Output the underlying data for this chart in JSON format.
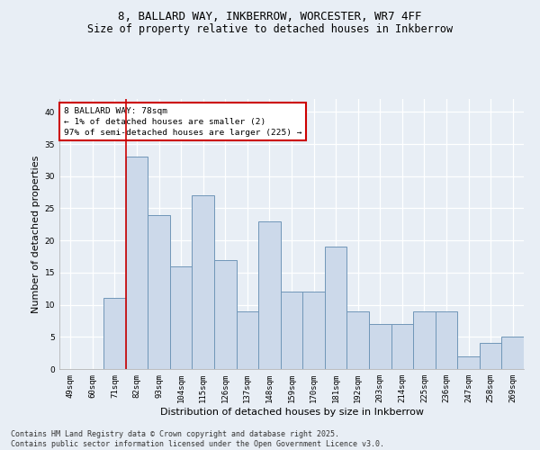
{
  "title_line1": "8, BALLARD WAY, INKBERROW, WORCESTER, WR7 4FF",
  "title_line2": "Size of property relative to detached houses in Inkberrow",
  "xlabel": "Distribution of detached houses by size in Inkberrow",
  "ylabel": "Number of detached properties",
  "categories": [
    "49sqm",
    "60sqm",
    "71sqm",
    "82sqm",
    "93sqm",
    "104sqm",
    "115sqm",
    "126sqm",
    "137sqm",
    "148sqm",
    "159sqm",
    "170sqm",
    "181sqm",
    "192sqm",
    "203sqm",
    "214sqm",
    "225sqm",
    "236sqm",
    "247sqm",
    "258sqm",
    "269sqm"
  ],
  "values": [
    0,
    0,
    11,
    33,
    24,
    16,
    27,
    17,
    9,
    23,
    12,
    12,
    19,
    9,
    7,
    7,
    9,
    9,
    2,
    4,
    5
  ],
  "bar_color": "#ccd9ea",
  "bar_edge_color": "#7096b8",
  "annotation_title": "8 BALLARD WAY: 78sqm",
  "annotation_line2": "← 1% of detached houses are smaller (2)",
  "annotation_line3": "97% of semi-detached houses are larger (225) →",
  "ylim": [
    0,
    42
  ],
  "yticks": [
    0,
    5,
    10,
    15,
    20,
    25,
    30,
    35,
    40
  ],
  "footer_line1": "Contains HM Land Registry data © Crown copyright and database right 2025.",
  "footer_line2": "Contains public sector information licensed under the Open Government Licence v3.0.",
  "bg_color": "#e8eef5",
  "plot_bg_color": "#e8eef5",
  "grid_color": "#ffffff",
  "annotation_box_color": "#ffffff",
  "annotation_border_color": "#cc0000",
  "red_line_index": 2.5,
  "title_fontsize": 9,
  "subtitle_fontsize": 8.5,
  "axis_label_fontsize": 8,
  "tick_fontsize": 6.5,
  "annotation_fontsize": 6.8,
  "footer_fontsize": 6
}
